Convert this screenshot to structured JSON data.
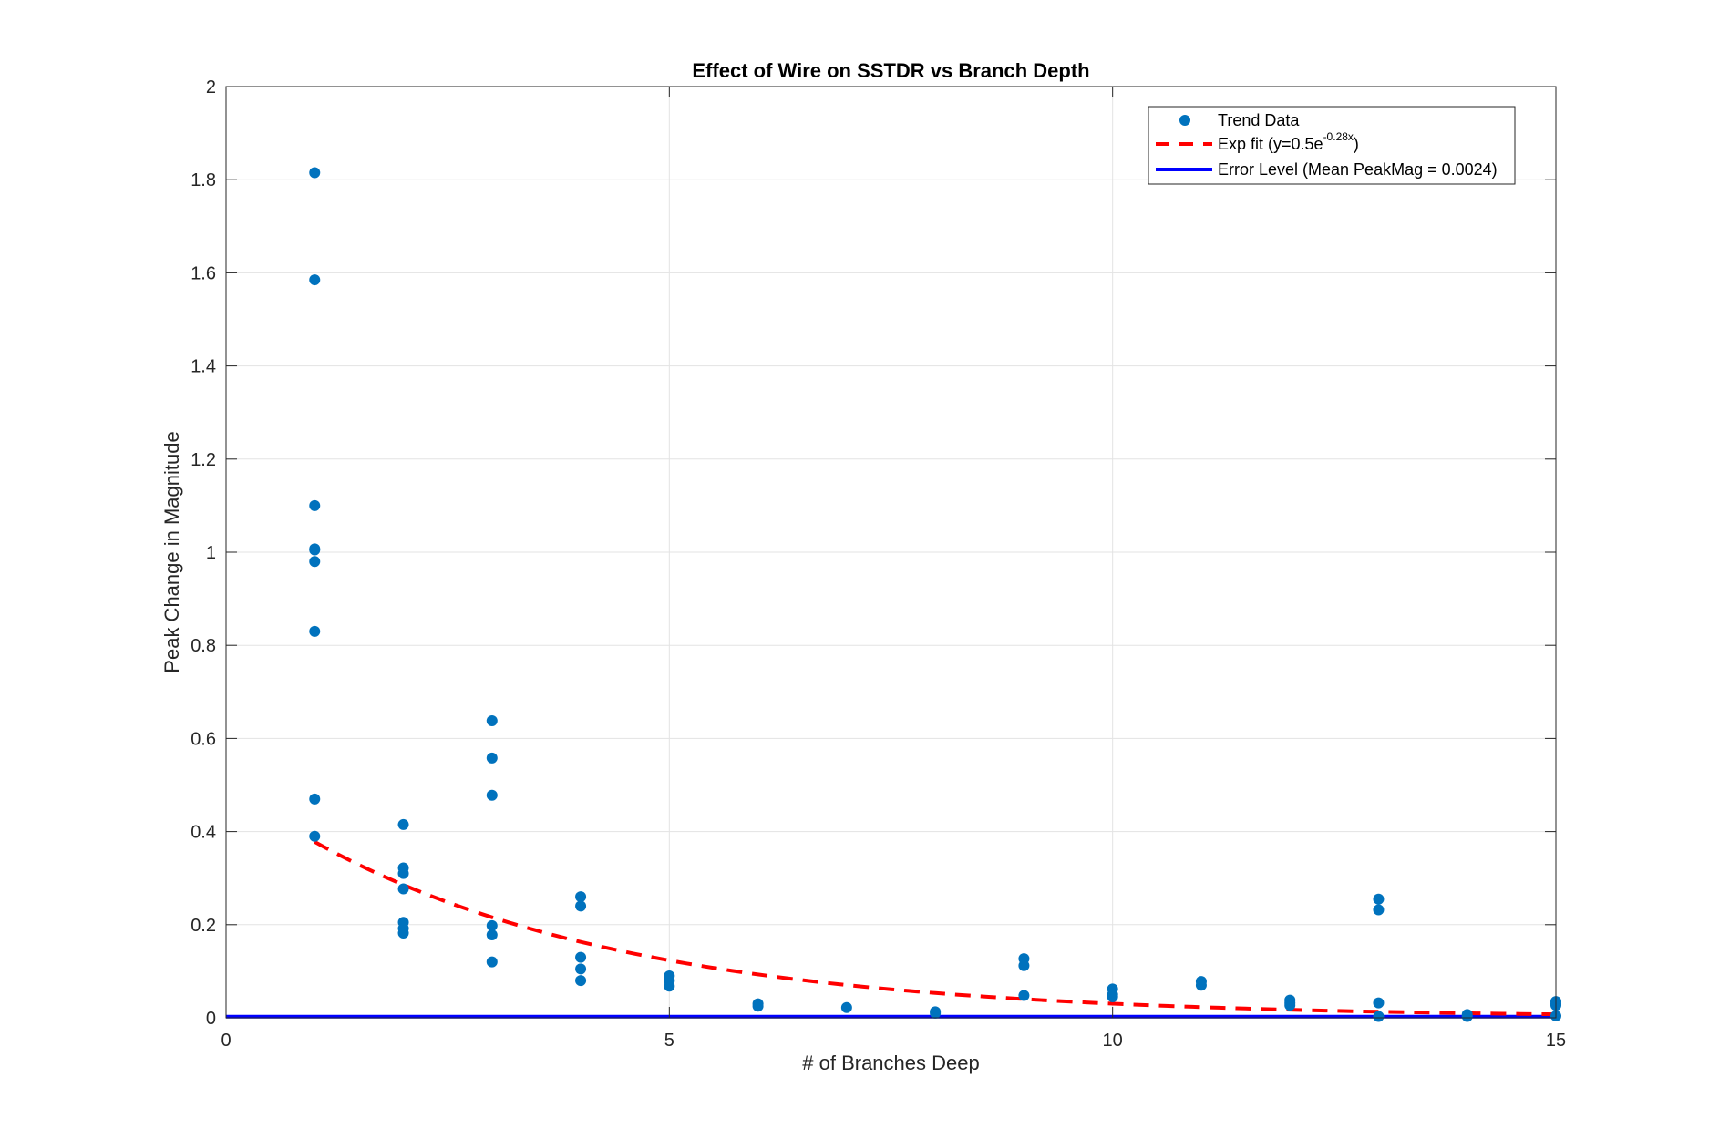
{
  "chart_data": {
    "type": "scatter",
    "title": "Effect of Wire on SSTDR vs Branch Depth",
    "xlabel": "# of Branches Deep",
    "ylabel": "Peak Change in Magnitude",
    "xlim": [
      0,
      15
    ],
    "ylim": [
      0,
      2
    ],
    "xticks": [
      0,
      5,
      10,
      15
    ],
    "yticks": [
      0,
      0.2,
      0.4,
      0.6,
      0.8,
      1,
      1.2,
      1.4,
      1.6,
      1.8,
      2
    ],
    "grid": true,
    "legend_position": "top-right",
    "series": [
      {
        "name": "Trend Data",
        "kind": "scatter",
        "color": "#0072BD",
        "points": [
          [
            1,
            1.815
          ],
          [
            1,
            1.585
          ],
          [
            1,
            1.1
          ],
          [
            1,
            1.007
          ],
          [
            1,
            1.005
          ],
          [
            1,
            0.98
          ],
          [
            1,
            0.83
          ],
          [
            1,
            0.47
          ],
          [
            1,
            0.39
          ],
          [
            2,
            0.415
          ],
          [
            2,
            0.322
          ],
          [
            2,
            0.31
          ],
          [
            2,
            0.277
          ],
          [
            2,
            0.205
          ],
          [
            2,
            0.192
          ],
          [
            2,
            0.182
          ],
          [
            3,
            0.638
          ],
          [
            3,
            0.558
          ],
          [
            3,
            0.478
          ],
          [
            3,
            0.198
          ],
          [
            3,
            0.178
          ],
          [
            3,
            0.12
          ],
          [
            4,
            0.26
          ],
          [
            4,
            0.24
          ],
          [
            4,
            0.13
          ],
          [
            4,
            0.105
          ],
          [
            4,
            0.08
          ],
          [
            5,
            0.09
          ],
          [
            5,
            0.08
          ],
          [
            5,
            0.068
          ],
          [
            6,
            0.03
          ],
          [
            6,
            0.025
          ],
          [
            7,
            0.022
          ],
          [
            8,
            0.013
          ],
          [
            8,
            0.01
          ],
          [
            9,
            0.127
          ],
          [
            9,
            0.112
          ],
          [
            9,
            0.048
          ],
          [
            10,
            0.062
          ],
          [
            10,
            0.05
          ],
          [
            10,
            0.045
          ],
          [
            11,
            0.078
          ],
          [
            11,
            0.07
          ],
          [
            12,
            0.038
          ],
          [
            12,
            0.032
          ],
          [
            12,
            0.027
          ],
          [
            13,
            0.255
          ],
          [
            13,
            0.232
          ],
          [
            13,
            0.032
          ],
          [
            13,
            0.003
          ],
          [
            14,
            0.007
          ],
          [
            14,
            0.003
          ],
          [
            15,
            0.035
          ],
          [
            15,
            0.03
          ],
          [
            15,
            0.027
          ],
          [
            15,
            0.004
          ]
        ]
      },
      {
        "name": "Exp fit (y=0.5e",
        "name_superscript": "-0.28x",
        "name_suffix": ")",
        "kind": "line",
        "style": "dashed",
        "color": "#FF0000",
        "equation": {
          "a": 0.5,
          "b": -0.28
        },
        "x_range": [
          1,
          15
        ]
      },
      {
        "name": "Error Level (Mean PeakMag = 0.0024)",
        "kind": "line",
        "style": "solid",
        "color": "#0000FF",
        "y_value": 0.0024,
        "x_range": [
          0,
          15
        ]
      }
    ]
  }
}
